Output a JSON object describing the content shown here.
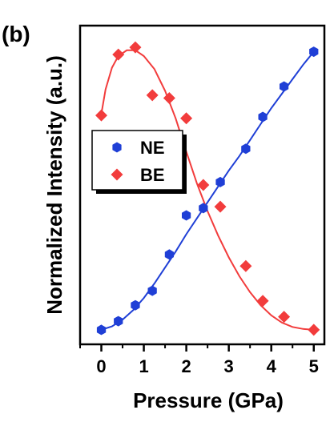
{
  "panel_label": "(b)",
  "colors": {
    "NE": "#1f3fd6",
    "BE": "#f23c3c",
    "axis": "#000000"
  },
  "chart_data": {
    "type": "scatter",
    "title": "",
    "xlabel": "Pressure (GPa)",
    "ylabel": "Normalized Intensity (a.u.)",
    "xlim": [
      -0.5,
      5.25
    ],
    "ylim": [
      -0.05,
      1.05
    ],
    "x_ticks": [
      0,
      1,
      2,
      3,
      4,
      5
    ],
    "x_tick_labels": [
      "0",
      "1",
      "2",
      "3",
      "4",
      "5"
    ],
    "y_ticks_shown": false,
    "legend": {
      "placement": "left-middle",
      "entries": [
        {
          "name": "NE",
          "marker": "hexagon",
          "color": "#1f3fd6"
        },
        {
          "name": "BE",
          "marker": "diamond",
          "color": "#f23c3c"
        }
      ]
    },
    "series": [
      {
        "name": "NE",
        "marker": "hexagon",
        "color": "#1f3fd6",
        "points": [
          {
            "x": 0.0,
            "y": 0.0
          },
          {
            "x": 0.4,
            "y": 0.03
          },
          {
            "x": 0.8,
            "y": 0.085
          },
          {
            "x": 1.2,
            "y": 0.135
          },
          {
            "x": 1.6,
            "y": 0.26
          },
          {
            "x": 2.0,
            "y": 0.395
          },
          {
            "x": 2.4,
            "y": 0.42
          },
          {
            "x": 2.8,
            "y": 0.51
          },
          {
            "x": 3.4,
            "y": 0.625
          },
          {
            "x": 3.8,
            "y": 0.735
          },
          {
            "x": 4.3,
            "y": 0.84
          },
          {
            "x": 5.0,
            "y": 0.96
          }
        ],
        "fit": [
          {
            "x": 0.0,
            "y": 0.0
          },
          {
            "x": 0.25,
            "y": 0.012
          },
          {
            "x": 0.5,
            "y": 0.035
          },
          {
            "x": 0.75,
            "y": 0.068
          },
          {
            "x": 1.0,
            "y": 0.11
          },
          {
            "x": 1.25,
            "y": 0.16
          },
          {
            "x": 1.5,
            "y": 0.215
          },
          {
            "x": 1.75,
            "y": 0.27
          },
          {
            "x": 2.0,
            "y": 0.33
          },
          {
            "x": 2.25,
            "y": 0.385
          },
          {
            "x": 2.5,
            "y": 0.44
          },
          {
            "x": 2.75,
            "y": 0.495
          },
          {
            "x": 3.0,
            "y": 0.55
          },
          {
            "x": 3.25,
            "y": 0.6
          },
          {
            "x": 3.5,
            "y": 0.655
          },
          {
            "x": 3.75,
            "y": 0.71
          },
          {
            "x": 4.0,
            "y": 0.765
          },
          {
            "x": 4.25,
            "y": 0.815
          },
          {
            "x": 4.5,
            "y": 0.865
          },
          {
            "x": 4.75,
            "y": 0.915
          },
          {
            "x": 5.0,
            "y": 0.96
          }
        ]
      },
      {
        "name": "BE",
        "marker": "diamond",
        "color": "#f23c3c",
        "points": [
          {
            "x": 0.0,
            "y": 0.74
          },
          {
            "x": 0.4,
            "y": 0.95
          },
          {
            "x": 0.8,
            "y": 0.975
          },
          {
            "x": 1.2,
            "y": 0.81
          },
          {
            "x": 1.6,
            "y": 0.8
          },
          {
            "x": 2.0,
            "y": 0.73
          },
          {
            "x": 2.4,
            "y": 0.5
          },
          {
            "x": 2.8,
            "y": 0.425
          },
          {
            "x": 3.4,
            "y": 0.22
          },
          {
            "x": 3.8,
            "y": 0.1
          },
          {
            "x": 4.3,
            "y": 0.045
          },
          {
            "x": 5.0,
            "y": 0.0
          }
        ],
        "fit": [
          {
            "x": 0.0,
            "y": 0.745
          },
          {
            "x": 0.1,
            "y": 0.83
          },
          {
            "x": 0.25,
            "y": 0.905
          },
          {
            "x": 0.4,
            "y": 0.945
          },
          {
            "x": 0.6,
            "y": 0.965
          },
          {
            "x": 0.8,
            "y": 0.965
          },
          {
            "x": 1.0,
            "y": 0.945
          },
          {
            "x": 1.25,
            "y": 0.9
          },
          {
            "x": 1.5,
            "y": 0.825
          },
          {
            "x": 1.75,
            "y": 0.73
          },
          {
            "x": 2.0,
            "y": 0.615
          },
          {
            "x": 2.25,
            "y": 0.505
          },
          {
            "x": 2.5,
            "y": 0.41
          },
          {
            "x": 2.75,
            "y": 0.325
          },
          {
            "x": 3.0,
            "y": 0.25
          },
          {
            "x": 3.25,
            "y": 0.185
          },
          {
            "x": 3.5,
            "y": 0.13
          },
          {
            "x": 3.75,
            "y": 0.085
          },
          {
            "x": 4.0,
            "y": 0.05
          },
          {
            "x": 4.25,
            "y": 0.025
          },
          {
            "x": 4.5,
            "y": 0.01
          },
          {
            "x": 4.75,
            "y": 0.003
          },
          {
            "x": 5.0,
            "y": 0.0
          }
        ]
      }
    ]
  }
}
